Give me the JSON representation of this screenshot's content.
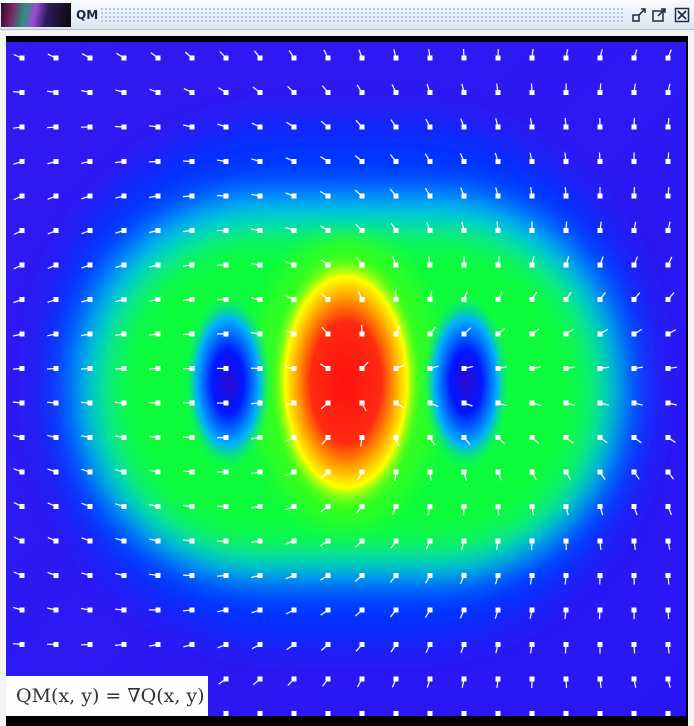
{
  "window": {
    "title": "QM",
    "buttons": [
      "restore-icon",
      "maximize-icon",
      "close-icon"
    ]
  },
  "caption": "QM(x, y) = ∇Q(x, y)",
  "chart_data": {
    "type": "heatmap",
    "title": "",
    "xlabel": "",
    "ylabel": "",
    "colormap": [
      "#5a18e6",
      "#0014ff",
      "#00e6ff",
      "#10ff20",
      "#ffff00",
      "#ff1010"
    ],
    "grid_shown": false,
    "overlay": "vector field (white arrows)",
    "field_grid": {
      "cols": 20,
      "rows": 20
    },
    "peaks": [
      {
        "kind": "maximum",
        "x": 0.0,
        "y": 0.0,
        "color": "#ff1010"
      },
      {
        "kind": "minimum",
        "x": -1.35,
        "y": 0.0,
        "color": "#2010d8"
      },
      {
        "kind": "minimum",
        "x": 1.35,
        "y": 0.0,
        "color": "#2010d8"
      }
    ]
  }
}
